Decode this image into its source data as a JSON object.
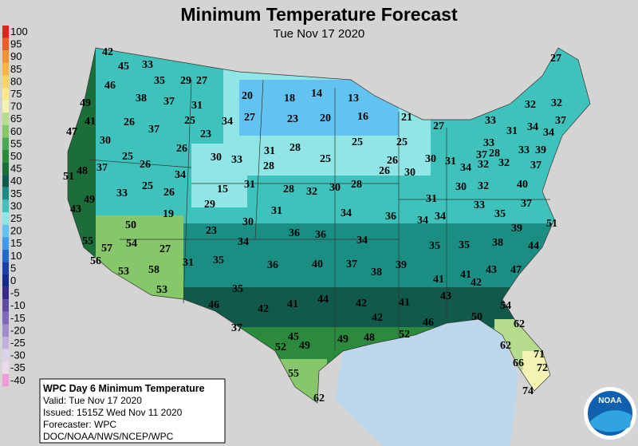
{
  "header": {
    "title": "Minimum Temperature Forecast",
    "subtitle": "Tue Nov 17 2020"
  },
  "scale": {
    "labels": [
      100,
      95,
      90,
      85,
      80,
      75,
      70,
      65,
      60,
      55,
      50,
      45,
      40,
      35,
      30,
      25,
      20,
      15,
      10,
      5,
      0,
      -5,
      -10,
      -15,
      -20,
      -25,
      -30,
      -35,
      -40
    ],
    "colors": [
      "#e8201c",
      "#f25a2a",
      "#f7902f",
      "#f9b63a",
      "#fbd656",
      "#fce987",
      "#f3f3b2",
      "#b6dd8e",
      "#86c76a",
      "#4da651",
      "#2b8a3b",
      "#1b6e3a",
      "#11594a",
      "#1b8e84",
      "#3fc2bb",
      "#90e6e6",
      "#63c3f0",
      "#3f9ae8",
      "#2366d0",
      "#1b3fb0",
      "#152a8a",
      "#3a2a86",
      "#5e4aa0",
      "#7e6ab8",
      "#9f8ccb",
      "#c0b0dc",
      "#dcd2ea",
      "#ecd9ec",
      "#f19ad8"
    ]
  },
  "info": {
    "lines": [
      "WPC Day 6 Minimum Temperature",
      "Valid: Tue Nov 17 2020",
      "Issued: 1515Z Wed Nov 11 2020",
      "Forecaster: WPC",
      "DOC/NOAA/NWS/NCEP/WPC"
    ]
  },
  "logo": {
    "text": "NOAA"
  },
  "stations": [
    42,
    45,
    33,
    35,
    29,
    27,
    27,
    46,
    38,
    37,
    31,
    20,
    18,
    14,
    13,
    49,
    32,
    32,
    41,
    26,
    37,
    25,
    34,
    27,
    23,
    20,
    16,
    21,
    27,
    33,
    31,
    34,
    34,
    37,
    47,
    30,
    23,
    31,
    28,
    25,
    25,
    33,
    28,
    37,
    33,
    39,
    25,
    26,
    30,
    33,
    28,
    25,
    26,
    26,
    30,
    30,
    31,
    34,
    32,
    32,
    37,
    51,
    48,
    37,
    26,
    34,
    49,
    33,
    25,
    26,
    15,
    31,
    28,
    32,
    30,
    28,
    31,
    30,
    32,
    40,
    43,
    19,
    29,
    31,
    34,
    36,
    34,
    34,
    33,
    35,
    37,
    50,
    30,
    23,
    36,
    36,
    39,
    51,
    55,
    54,
    57,
    27,
    34,
    34,
    35,
    35,
    38,
    44,
    56,
    31,
    35,
    36,
    40,
    37,
    38,
    39,
    43,
    47,
    53,
    58,
    41,
    41,
    42,
    53,
    35,
    43,
    46,
    42,
    41,
    44,
    42,
    41,
    54,
    42,
    50,
    46,
    52,
    62,
    37,
    45,
    49,
    49,
    48,
    52,
    62,
    71,
    66,
    72,
    55,
    74,
    62
  ]
}
